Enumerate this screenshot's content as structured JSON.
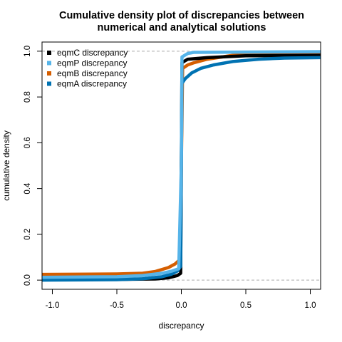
{
  "chart_data": {
    "type": "line",
    "title_lines": [
      "Cumulative density plot of discrepancies between",
      "numerical and analytical solutions"
    ],
    "xlabel": "discrepancy",
    "ylabel": "cumulative density",
    "xlim": [
      -1.08,
      1.08
    ],
    "ylim": [
      -0.04,
      1.04
    ],
    "x_ticks": [
      -1.0,
      -0.5,
      0.0,
      0.5,
      1.0
    ],
    "x_tick_labels": [
      "-1.0",
      "-0.5",
      "0.0",
      "0.5",
      "1.0"
    ],
    "y_ticks": [
      0.0,
      0.2,
      0.4,
      0.6,
      0.8,
      1.0
    ],
    "y_tick_labels": [
      "0.0",
      "0.2",
      "0.4",
      "0.6",
      "0.8",
      "1.0"
    ],
    "reference_lines": [
      0,
      1
    ],
    "legend_position": "top-left",
    "grid": false,
    "series": [
      {
        "name": "eqmB discrepancy",
        "color": "#d55e00",
        "points": [
          [
            -1.1,
            0.025
          ],
          [
            -0.5,
            0.027
          ],
          [
            -0.3,
            0.03
          ],
          [
            -0.2,
            0.038
          ],
          [
            -0.1,
            0.055
          ],
          [
            -0.05,
            0.07
          ],
          [
            -0.01,
            0.09
          ],
          [
            0.0,
            0.5
          ],
          [
            0.01,
            0.925
          ],
          [
            0.05,
            0.94
          ],
          [
            0.1,
            0.95
          ],
          [
            0.2,
            0.965
          ],
          [
            0.4,
            0.982
          ],
          [
            0.6,
            0.99
          ],
          [
            1.1,
            0.995
          ]
        ]
      },
      {
        "name": "eqmC discrepancy",
        "color": "#000000",
        "points": [
          [
            -1.1,
            0.003
          ],
          [
            -0.5,
            0.003
          ],
          [
            -0.2,
            0.005
          ],
          [
            -0.1,
            0.01
          ],
          [
            -0.03,
            0.02
          ],
          [
            -0.005,
            0.03
          ],
          [
            0.0,
            0.5
          ],
          [
            0.005,
            0.95
          ],
          [
            0.05,
            0.965
          ],
          [
            0.2,
            0.972
          ],
          [
            0.5,
            0.98
          ],
          [
            1.1,
            0.982
          ]
        ]
      },
      {
        "name": "eqmA discrepancy",
        "color": "#0072b2",
        "points": [
          [
            -1.1,
            0.0
          ],
          [
            -0.5,
            0.002
          ],
          [
            -0.3,
            0.006
          ],
          [
            -0.15,
            0.015
          ],
          [
            -0.08,
            0.025
          ],
          [
            -0.03,
            0.04
          ],
          [
            -0.005,
            0.06
          ],
          [
            0.0,
            0.5
          ],
          [
            0.005,
            0.86
          ],
          [
            0.03,
            0.88
          ],
          [
            0.08,
            0.905
          ],
          [
            0.15,
            0.925
          ],
          [
            0.25,
            0.94
          ],
          [
            0.4,
            0.955
          ],
          [
            0.6,
            0.965
          ],
          [
            0.8,
            0.97
          ],
          [
            1.1,
            0.972
          ]
        ]
      },
      {
        "name": "eqmP discrepancy",
        "color": "#56b4e9",
        "points": [
          [
            -1.1,
            0.012
          ],
          [
            -0.5,
            0.015
          ],
          [
            -0.3,
            0.02
          ],
          [
            -0.15,
            0.03
          ],
          [
            -0.07,
            0.04
          ],
          [
            -0.02,
            0.05
          ],
          [
            0.0,
            0.5
          ],
          [
            0.005,
            0.975
          ],
          [
            0.05,
            0.99
          ],
          [
            0.1,
            0.995
          ],
          [
            1.1,
            0.998
          ]
        ]
      }
    ],
    "legend": [
      {
        "name": "eqmC discrepancy",
        "color": "#000000"
      },
      {
        "name": "eqmP discrepancy",
        "color": "#56b4e9"
      },
      {
        "name": "eqmB discrepancy",
        "color": "#d55e00"
      },
      {
        "name": "eqmA discrepancy",
        "color": "#0072b2"
      }
    ]
  }
}
